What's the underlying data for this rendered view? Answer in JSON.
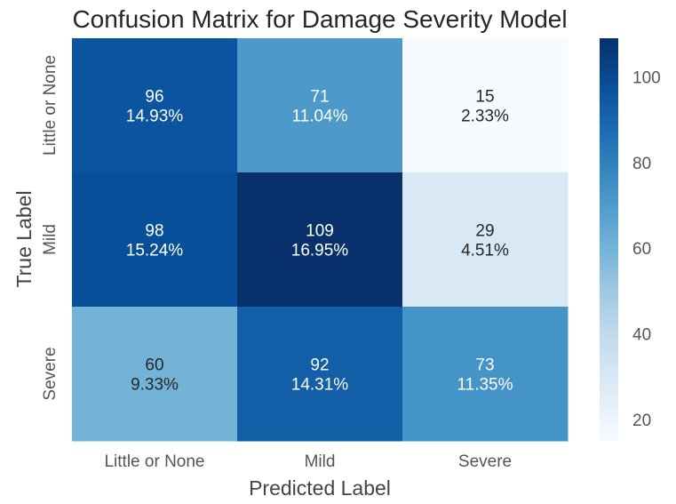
{
  "chart_data": {
    "type": "heatmap",
    "title": "Confusion Matrix for Damage Severity Model",
    "xlabel": "Predicted Label",
    "ylabel": "True Label",
    "x_categories": [
      "Little or None",
      "Mild",
      "Severe"
    ],
    "y_categories": [
      "Little or None",
      "Mild",
      "Severe"
    ],
    "values": [
      [
        96,
        71,
        15
      ],
      [
        98,
        109,
        29
      ],
      [
        60,
        92,
        73
      ]
    ],
    "percent_labels": [
      [
        "14.93%",
        "11.04%",
        "2.33%"
      ],
      [
        "15.24%",
        "16.95%",
        "4.51%"
      ],
      [
        "9.33%",
        "14.31%",
        "11.35%"
      ]
    ],
    "colormap": "Blues",
    "vmin": 15,
    "vmax": 109,
    "colorbar_ticks": [
      20,
      40,
      60,
      80,
      100
    ],
    "grid": false,
    "colors": {
      "text": "#262626",
      "label": "#444444",
      "tick": "#555555",
      "annot_dark": "#262626",
      "annot_light": "#ffffff"
    }
  }
}
